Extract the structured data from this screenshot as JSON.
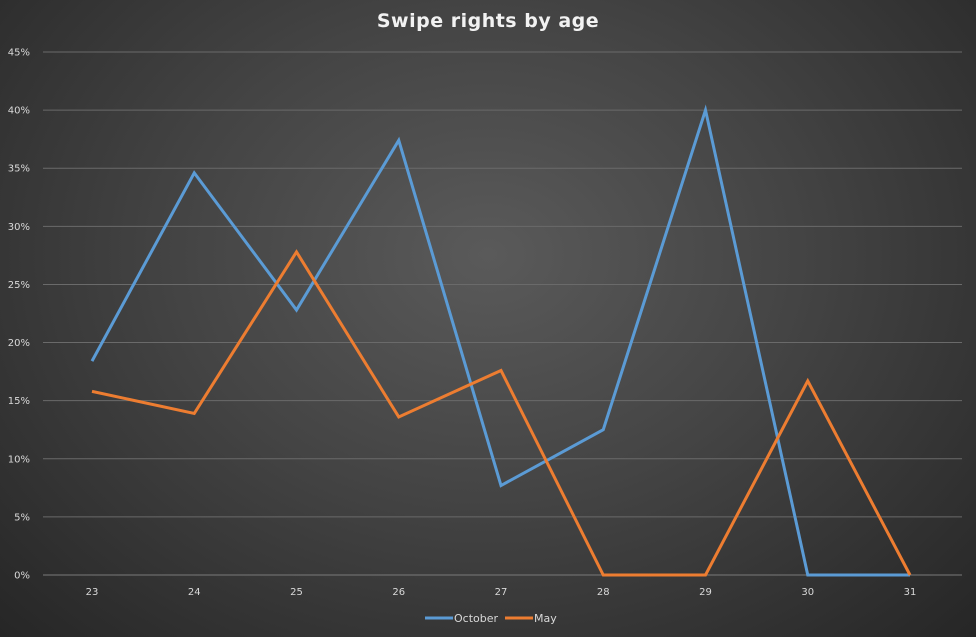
{
  "chart_data": {
    "type": "line",
    "title": "Swipe rights by age",
    "xlabel": "",
    "ylabel": "",
    "categories": [
      "23",
      "24",
      "25",
      "26",
      "27",
      "28",
      "29",
      "30",
      "31"
    ],
    "y_ticks": [
      "0%",
      "5%",
      "10%",
      "15%",
      "20%",
      "25%",
      "30%",
      "35%",
      "40%",
      "45%"
    ],
    "ylim": [
      0,
      45
    ],
    "grid": true,
    "legend_position": "bottom",
    "series": [
      {
        "name": "October",
        "color": "#5b9bd5",
        "values": [
          18.4,
          34.6,
          22.8,
          37.4,
          7.7,
          12.5,
          40.0,
          0,
          0
        ]
      },
      {
        "name": "May",
        "color": "#ed7d31",
        "values": [
          15.8,
          13.9,
          27.8,
          13.6,
          17.6,
          0,
          0,
          16.7,
          0
        ]
      }
    ]
  }
}
